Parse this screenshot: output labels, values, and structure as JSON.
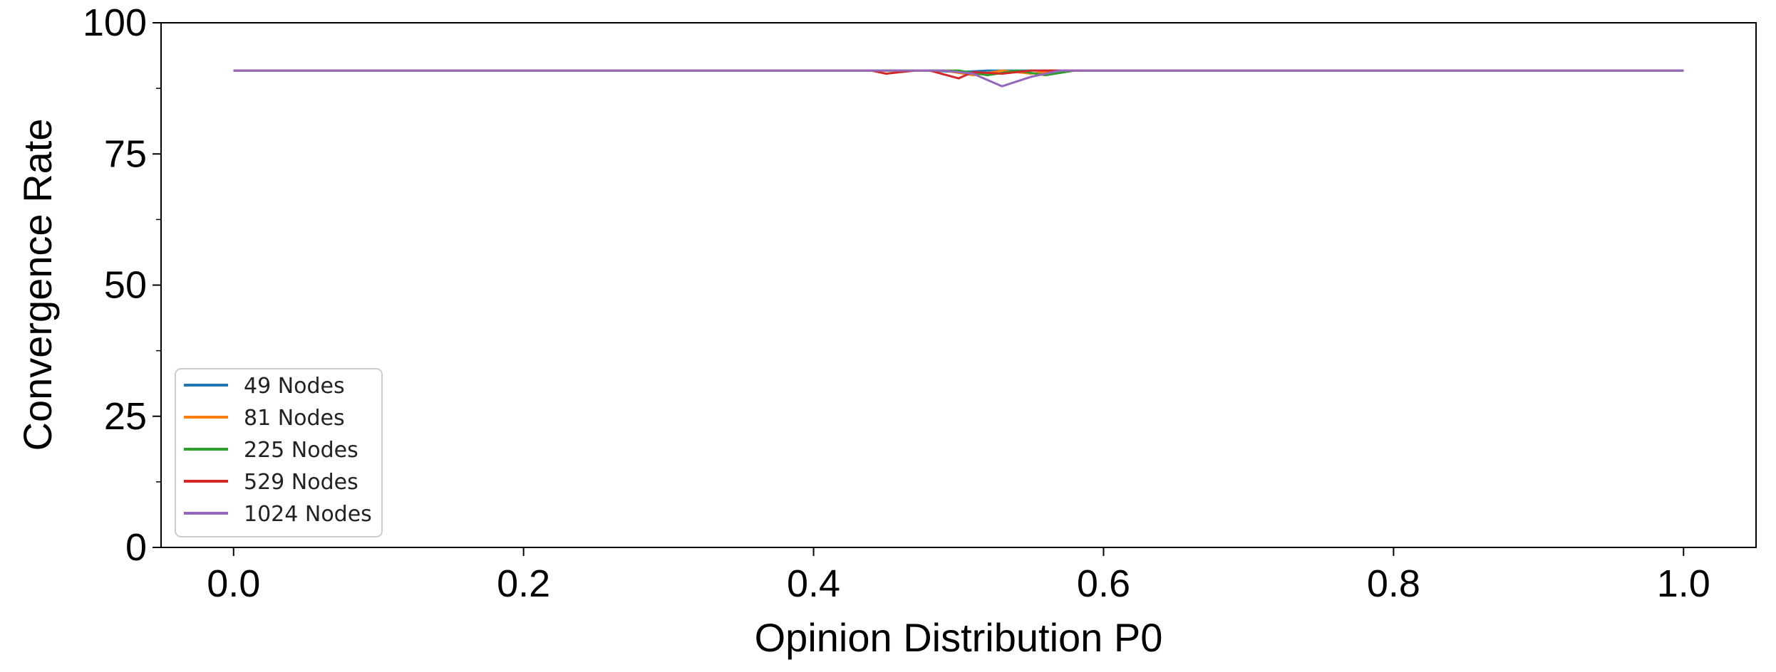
{
  "chart_data": {
    "type": "line",
    "title": "",
    "xlabel": "Opinion Distribution P0",
    "ylabel": "Convergence Rate",
    "xlim": [
      -0.05,
      1.05
    ],
    "ylim": [
      0,
      100
    ],
    "x_ticks": [
      "0.0",
      "0.2",
      "0.4",
      "0.6",
      "0.8",
      "1.0"
    ],
    "y_ticks": [
      "0",
      "25",
      "50",
      "75",
      "100"
    ],
    "grid": false,
    "legend_position": "lower-left",
    "series": [
      {
        "name": "49 Nodes",
        "color": "#1f77b4",
        "x": [
          0.0,
          0.45,
          0.48,
          0.5,
          0.52,
          0.55,
          0.58,
          1.0
        ],
        "y": [
          90.9,
          90.9,
          90.9,
          90.6,
          90.9,
          90.9,
          90.9,
          90.9
        ]
      },
      {
        "name": "81 Nodes",
        "color": "#ff7f0e",
        "x": [
          0.0,
          0.47,
          0.49,
          0.51,
          0.53,
          0.55,
          0.57,
          1.0
        ],
        "y": [
          90.9,
          90.9,
          90.9,
          90.0,
          90.9,
          90.3,
          90.9,
          90.9
        ]
      },
      {
        "name": "225 Nodes",
        "color": "#2ca02c",
        "x": [
          0.0,
          0.48,
          0.5,
          0.52,
          0.54,
          0.56,
          0.58,
          1.0
        ],
        "y": [
          90.9,
          90.9,
          90.9,
          90.0,
          90.9,
          90.0,
          90.9,
          90.9
        ]
      },
      {
        "name": "529 Nodes",
        "color": "#d62728",
        "x": [
          0.0,
          0.44,
          0.45,
          0.47,
          0.48,
          0.5,
          0.51,
          0.53,
          0.55,
          0.56,
          1.0
        ],
        "y": [
          90.9,
          90.9,
          90.3,
          90.9,
          90.9,
          89.4,
          90.6,
          90.3,
          90.9,
          90.9,
          90.9
        ]
      },
      {
        "name": "1024 Nodes",
        "color": "#9467bd",
        "x": [
          0.0,
          0.49,
          0.51,
          0.53,
          0.55,
          0.57,
          1.0
        ],
        "y": [
          90.9,
          90.9,
          90.3,
          87.9,
          89.7,
          90.9,
          90.9
        ]
      }
    ]
  }
}
